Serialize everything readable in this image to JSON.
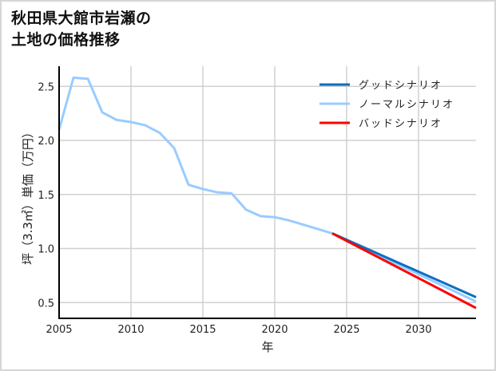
{
  "title_line1": "秋田県大館市岩瀬の",
  "title_line2": "土地の価格推移",
  "chart_data": {
    "type": "line",
    "title": "秋田県大館市岩瀬の土地の価格推移",
    "xlabel": "年",
    "ylabel": "坪（3.3㎡）単価（万円）",
    "xlim": [
      2005,
      2034
    ],
    "ylim": [
      0.35,
      2.7
    ],
    "xticks": [
      2005,
      2010,
      2015,
      2020,
      2025,
      2030
    ],
    "yticks": [
      0.5,
      1.0,
      1.5,
      2.0,
      2.5
    ],
    "ytick_labels": [
      "0.5",
      "1.0",
      "1.5",
      "2.0",
      "2.5"
    ],
    "grid": true,
    "legend_position": "upper right",
    "series": [
      {
        "name": "グッドシナリオ",
        "color": "#0a6fc2",
        "x": [
          2024,
          2034
        ],
        "values": [
          1.14,
          0.55
        ]
      },
      {
        "name": "ノーマルシナリオ",
        "color": "#99ccff",
        "x": [
          2005,
          2006,
          2007,
          2008,
          2009,
          2010,
          2011,
          2012,
          2013,
          2014,
          2015,
          2016,
          2017,
          2018,
          2019,
          2020,
          2021,
          2022,
          2023,
          2024,
          2034
        ],
        "values": [
          2.1,
          2.58,
          2.57,
          2.26,
          2.19,
          2.17,
          2.14,
          2.07,
          1.93,
          1.59,
          1.55,
          1.52,
          1.51,
          1.36,
          1.3,
          1.29,
          1.26,
          1.22,
          1.18,
          1.14,
          0.51
        ]
      },
      {
        "name": "バッドシナリオ",
        "color": "#ff0000",
        "x": [
          2024,
          2034
        ],
        "values": [
          1.14,
          0.45
        ]
      }
    ]
  }
}
